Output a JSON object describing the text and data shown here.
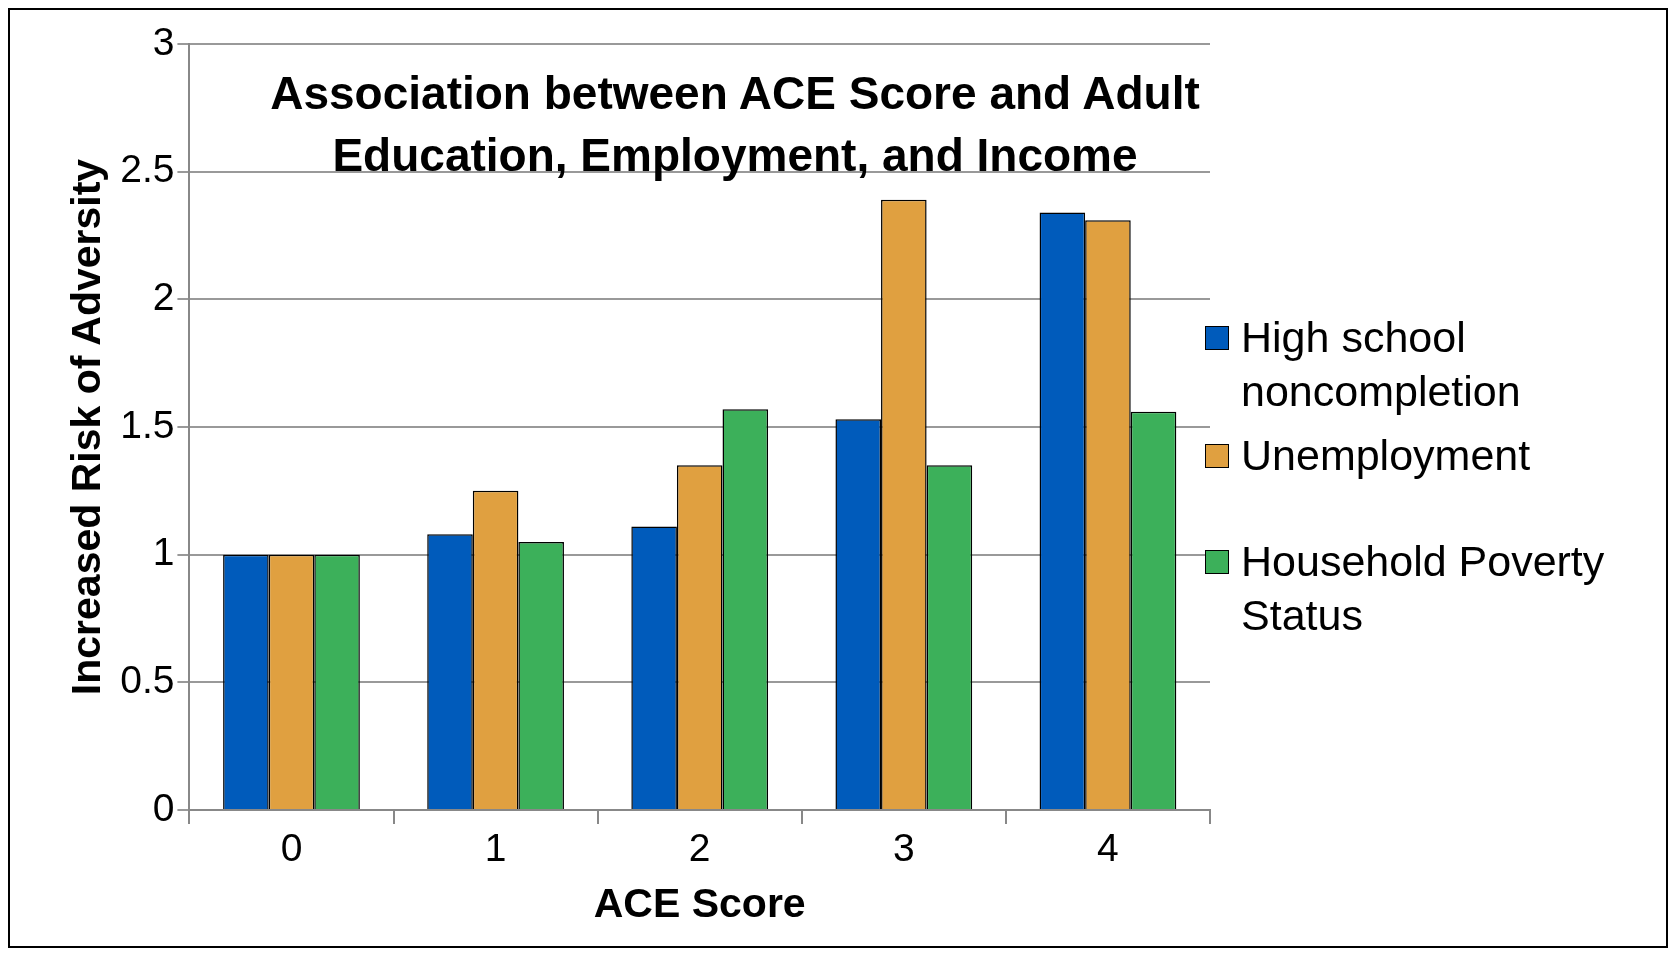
{
  "chart_data": {
    "type": "bar",
    "title": "Association between ACE Score and Adult Education, Employment, and Income",
    "xlabel": "ACE Score",
    "ylabel": "Increased Risk of Adversity",
    "categories": [
      "0",
      "1",
      "2",
      "3",
      "4"
    ],
    "series": [
      {
        "name": "High school noncompletion",
        "color": "#005bbb",
        "values": [
          1,
          1.08,
          1.11,
          1.53,
          2.34
        ]
      },
      {
        "name": "Unemployment",
        "color": "#e0a040",
        "values": [
          1,
          1.25,
          1.35,
          2.39,
          2.31
        ]
      },
      {
        "name": "Household Poverty Status",
        "color": "#3cb05a",
        "values": [
          1,
          1.05,
          1.57,
          1.35,
          1.56
        ]
      }
    ],
    "ylim": [
      0,
      3
    ],
    "yticks": [
      0,
      0.5,
      1,
      1.5,
      2,
      2.5,
      3
    ],
    "grid": "y",
    "legend": "right"
  }
}
